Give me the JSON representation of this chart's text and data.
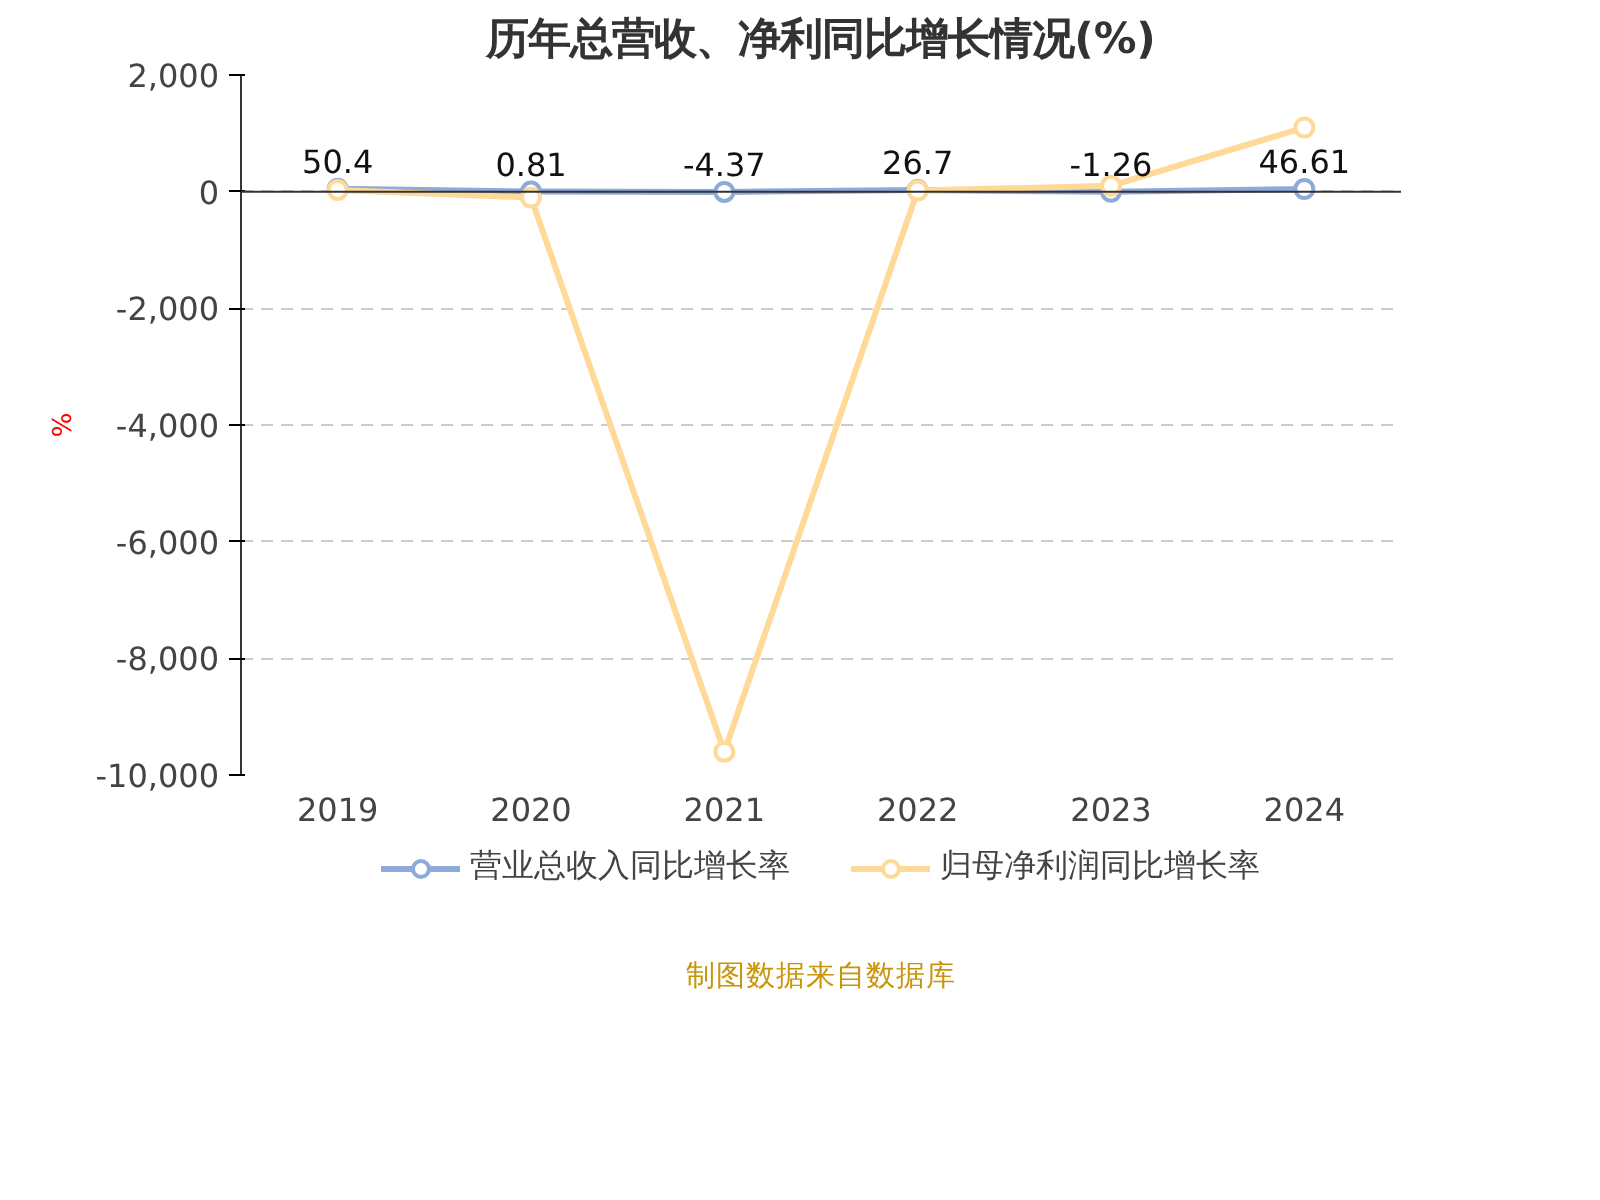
{
  "chart_data": {
    "type": "line",
    "title": "历年总营收、净利同比增长情况(%)",
    "ylabel": "%",
    "categories": [
      "2019",
      "2020",
      "2021",
      "2022",
      "2023",
      "2024"
    ],
    "series": [
      {
        "name": "营业总收入同比增长率",
        "color": "#8eaadb",
        "values": [
          50.4,
          0.81,
          -4.37,
          26.7,
          -1.26,
          46.61
        ],
        "value_labels": [
          "50.4",
          "0.81",
          "-4.37",
          "26.7",
          "-1.26",
          "46.61"
        ]
      },
      {
        "name": "归母净利润同比增长率",
        "color": "#ffd998",
        "values": [
          30,
          -100,
          -9600,
          20,
          100,
          1100
        ]
      }
    ],
    "ylim": [
      -10000,
      2000
    ],
    "yticks": [
      {
        "value": -10000,
        "label": "-10,000"
      },
      {
        "value": -8000,
        "label": "-8,000"
      },
      {
        "value": -6000,
        "label": "-6,000"
      },
      {
        "value": -4000,
        "label": "-4,000"
      },
      {
        "value": -2000,
        "label": "-2,000"
      },
      0,
      {
        "value": 2000,
        "label": "2,000"
      }
    ],
    "grid": "y",
    "legend": "bottom",
    "marker": "circle",
    "line_style": "solid",
    "annotations": [
      "制图数据来自数据库"
    ]
  }
}
